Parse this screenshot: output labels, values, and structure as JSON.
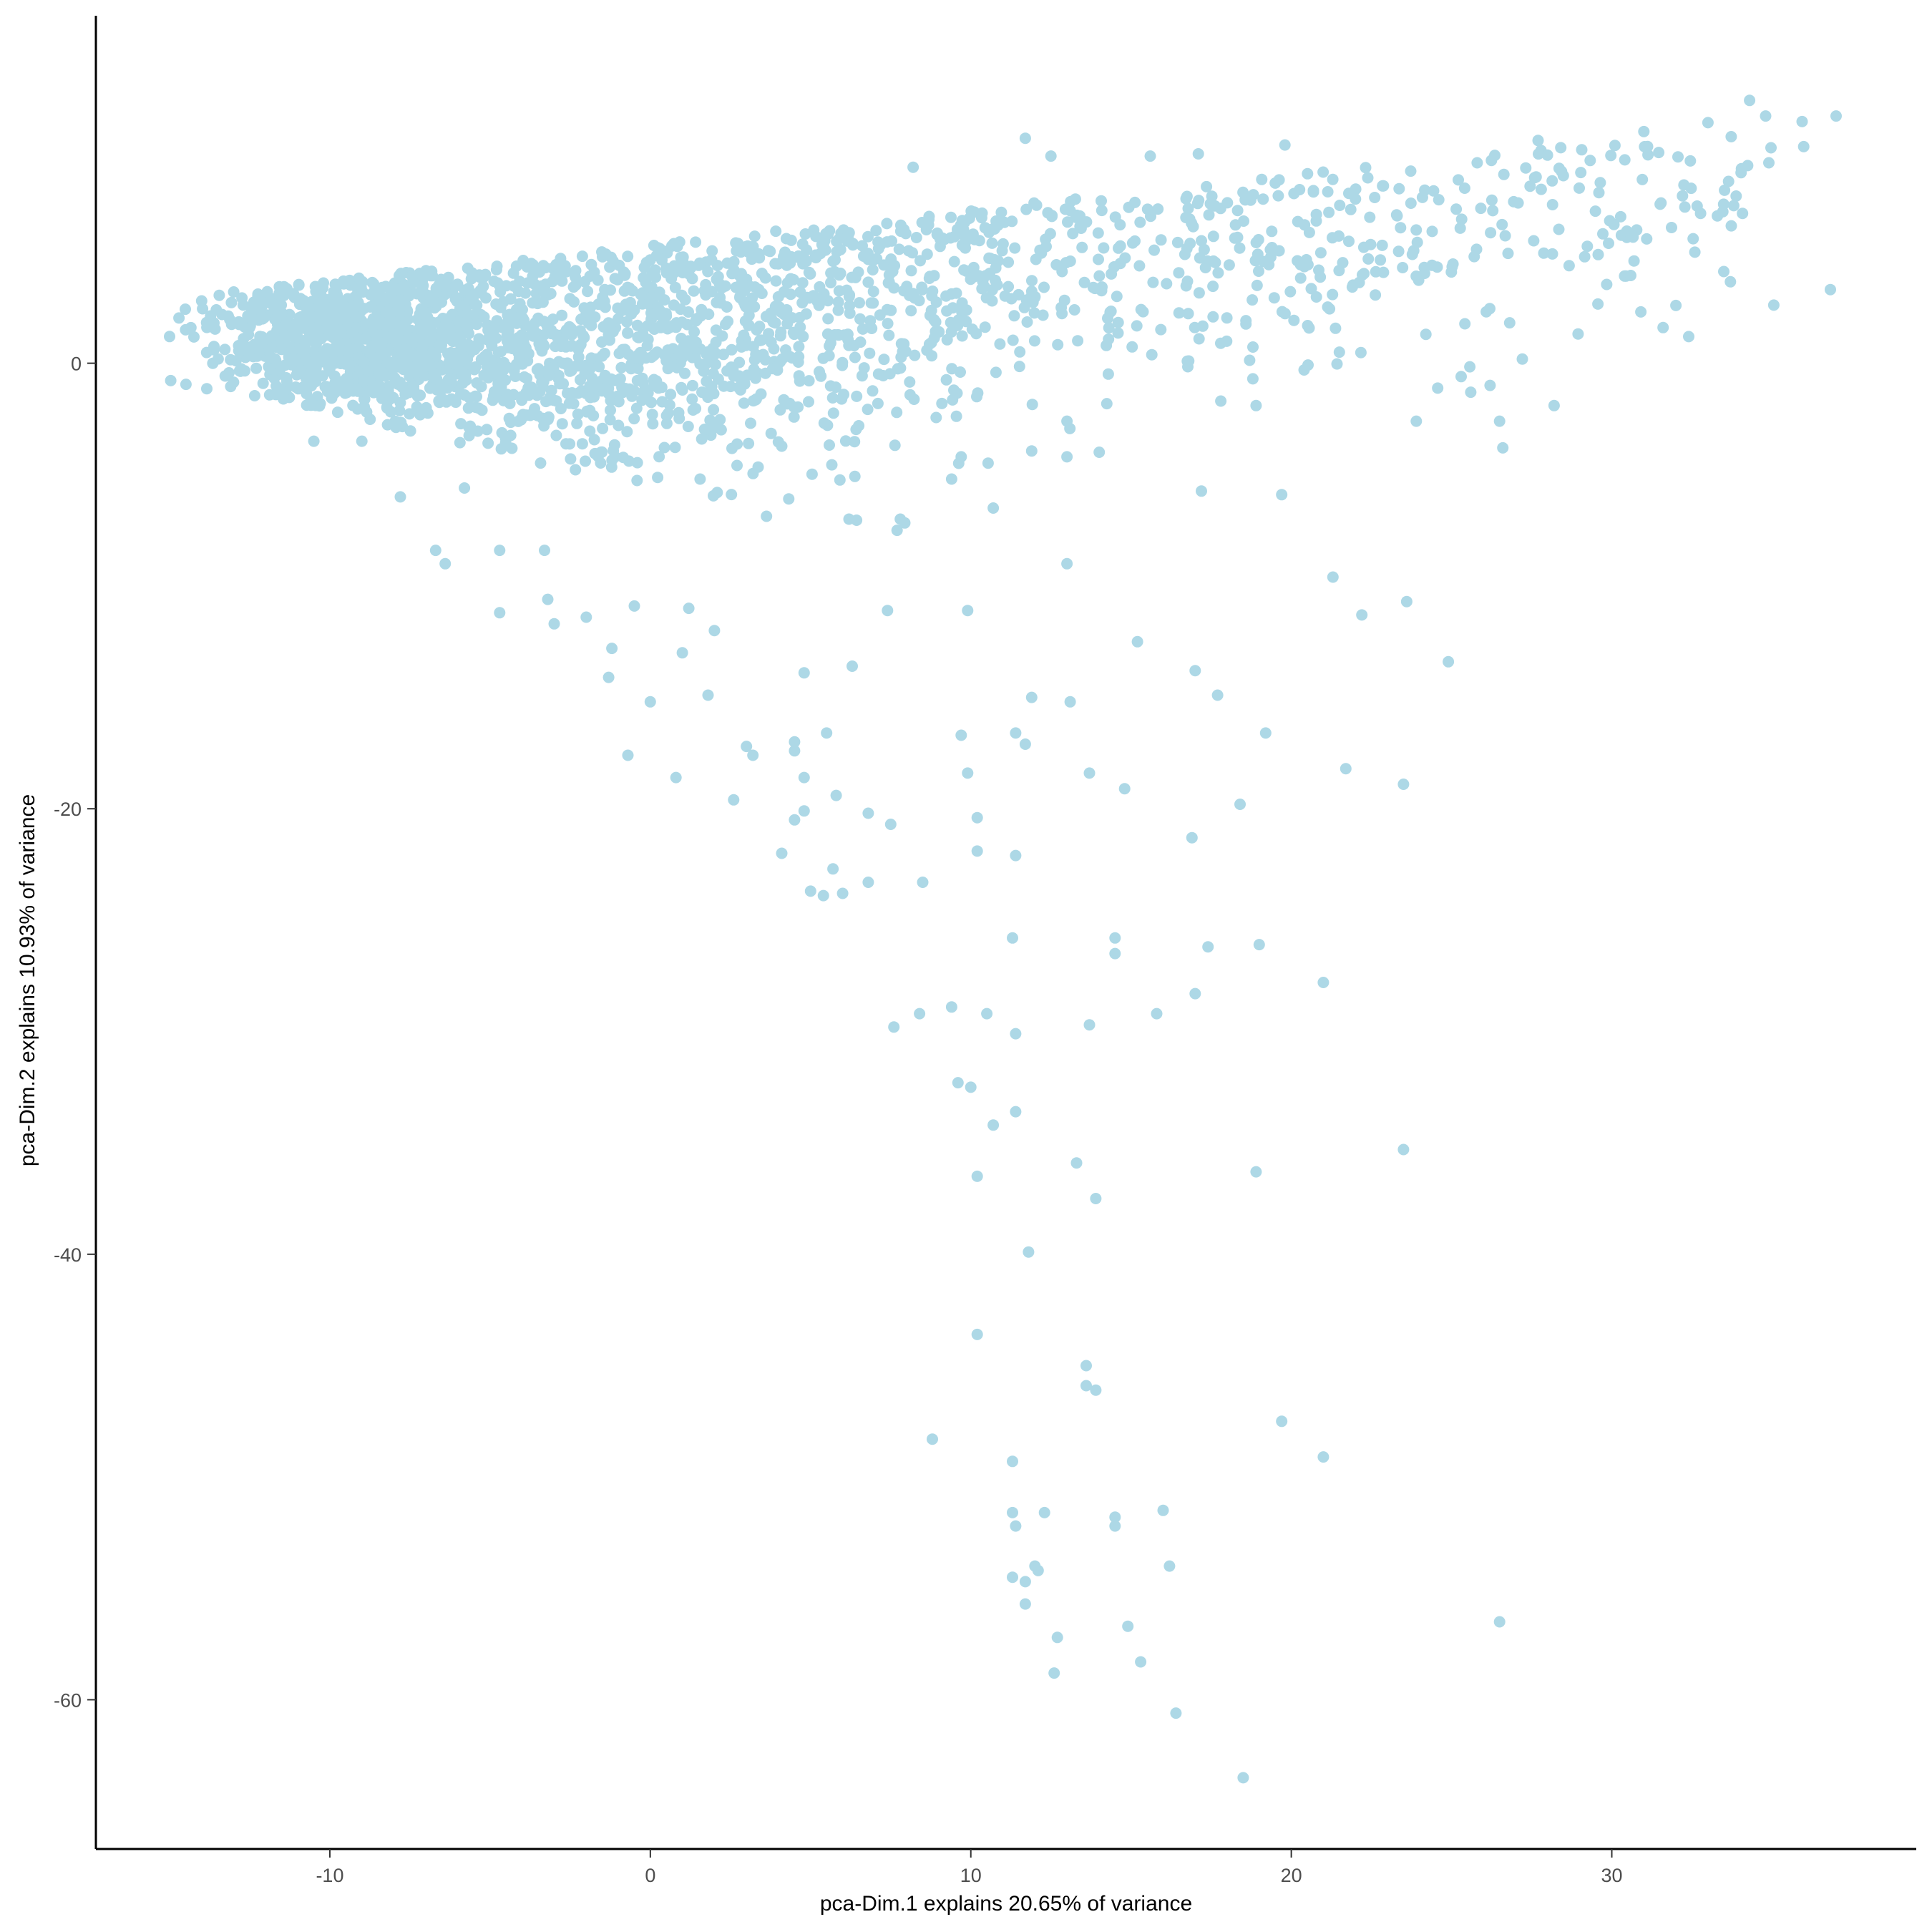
{
  "chart_data": {
    "type": "scatter",
    "title": "",
    "xlabel": "pca-Dim.1 explains 20.65% of variance",
    "ylabel": "pca-Dim.2 explains 10.93% of variance",
    "xlim": [
      -17.3,
      39.5
    ],
    "ylim": [
      -66.7,
      15.6
    ],
    "x_ticks": [
      -10,
      0,
      10,
      20,
      30
    ],
    "y_ticks": [
      0,
      -20,
      -40,
      -60
    ],
    "x_tick_labels": [
      "-10",
      "0",
      "10",
      "20",
      "30"
    ],
    "y_tick_labels": [
      "0",
      "-20",
      "-40",
      "-60"
    ],
    "grid": false,
    "legend": null,
    "point_color": "#ADD8E6",
    "point_radius_px": 8,
    "dense_cloud": {
      "description": "approximately 2500 points forming a wedge from (-15,1) widening to the upper right up to (37,11); densest near x=-10..-7, y=0..3",
      "seed": 7,
      "components": [
        {
          "n": 900,
          "cx": -9.0,
          "cy": 1.2,
          "sx": 2.2,
          "sy": 1.6
        },
        {
          "n": 500,
          "cx": -4.0,
          "cy": 0.5,
          "sx": 2.6,
          "sy": 2.4
        },
        {
          "n": 450,
          "cx": 2.0,
          "cy": 1.5,
          "sx": 3.0,
          "sy": 3.2
        },
        {
          "n": 300,
          "cx": 8.0,
          "cy": 3.5,
          "sx": 3.2,
          "sy": 3.0
        },
        {
          "n": 160,
          "cx": 15.0,
          "cy": 4.5,
          "sx": 3.2,
          "sy": 2.6
        },
        {
          "n": 110,
          "cx": 22.0,
          "cy": 5.5,
          "sx": 3.0,
          "sy": 2.6
        },
        {
          "n": 110,
          "cx": 29.5,
          "cy": 7.0,
          "sx": 3.0,
          "sy": 2.4
        }
      ]
    },
    "points": [
      {
        "x": 37.0,
        "y": 11.1
      },
      {
        "x": 34.3,
        "y": 11.8
      },
      {
        "x": 34.8,
        "y": 11.1
      },
      {
        "x": 33.0,
        "y": 10.8
      },
      {
        "x": 31.0,
        "y": 10.4
      },
      {
        "x": 11.7,
        "y": 10.1
      },
      {
        "x": 12.5,
        "y": 9.3
      },
      {
        "x": 15.6,
        "y": 9.3
      },
      {
        "x": 17.1,
        "y": 9.4
      },
      {
        "x": 19.8,
        "y": 9.8
      },
      {
        "x": 27.7,
        "y": 10.0
      },
      {
        "x": 8.2,
        "y": 8.8
      },
      {
        "x": 34.9,
        "y": 9.0
      },
      {
        "x": 25.8,
        "y": 9.0
      },
      {
        "x": 31.6,
        "y": 1.6
      },
      {
        "x": 24.2,
        "y": 1.3
      },
      {
        "x": 21.5,
        "y": 0.5
      },
      {
        "x": 16.8,
        "y": 0.1
      },
      {
        "x": 20.4,
        "y": -0.3
      },
      {
        "x": 25.3,
        "y": -0.6
      },
      {
        "x": 25.6,
        "y": -1.3
      },
      {
        "x": 17.8,
        "y": -1.7
      },
      {
        "x": 18.8,
        "y": -0.7
      },
      {
        "x": 18.9,
        "y": -1.9
      },
      {
        "x": 28.2,
        "y": -1.9
      },
      {
        "x": 23.9,
        "y": -2.6
      },
      {
        "x": 26.5,
        "y": -2.6
      },
      {
        "x": 13.0,
        "y": -2.6
      },
      {
        "x": 26.6,
        "y": -3.8
      },
      {
        "x": 13.0,
        "y": -4.2
      },
      {
        "x": 19.7,
        "y": -5.9
      },
      {
        "x": 9.4,
        "y": -5.2
      },
      {
        "x": 9.7,
        "y": -4.2
      },
      {
        "x": 10.7,
        "y": -6.5
      },
      {
        "x": 7.8,
        "y": -7.0
      },
      {
        "x": 7.7,
        "y": -7.5
      },
      {
        "x": 6.2,
        "y": -7.0
      },
      {
        "x": -6.7,
        "y": -8.4
      },
      {
        "x": -6.4,
        "y": -9.0
      },
      {
        "x": -4.7,
        "y": -8.4
      },
      {
        "x": -3.3,
        "y": -8.4
      },
      {
        "x": -4.7,
        "y": -11.2
      },
      {
        "x": -3.2,
        "y": -10.6
      },
      {
        "x": 13.0,
        "y": -9.0
      },
      {
        "x": 21.3,
        "y": -9.6
      },
      {
        "x": 23.6,
        "y": -10.7
      },
      {
        "x": 22.2,
        "y": -11.3
      },
      {
        "x": 7.4,
        "y": -11.1
      },
      {
        "x": 9.9,
        "y": -11.1
      },
      {
        "x": 15.2,
        "y": -12.5
      },
      {
        "x": 24.9,
        "y": -13.4
      },
      {
        "x": 17.0,
        "y": -13.8
      },
      {
        "x": 6.3,
        "y": -13.6
      },
      {
        "x": 4.8,
        "y": -13.9
      },
      {
        "x": -1.3,
        "y": -14.1
      },
      {
        "x": 0.0,
        "y": -15.2
      },
      {
        "x": 11.9,
        "y": -15.0
      },
      {
        "x": 13.1,
        "y": -15.2
      },
      {
        "x": 17.7,
        "y": -14.9
      },
      {
        "x": 19.2,
        "y": -16.6
      },
      {
        "x": 11.4,
        "y": -16.6
      },
      {
        "x": 9.7,
        "y": -16.7
      },
      {
        "x": 11.7,
        "y": -17.1
      },
      {
        "x": 5.5,
        "y": -16.6
      },
      {
        "x": 4.5,
        "y": -17.0
      },
      {
        "x": 4.5,
        "y": -17.4
      },
      {
        "x": 3.0,
        "y": -17.2
      },
      {
        "x": 3.2,
        "y": -17.6
      },
      {
        "x": -0.7,
        "y": -17.6
      },
      {
        "x": 21.7,
        "y": -18.2
      },
      {
        "x": 23.5,
        "y": -18.9
      },
      {
        "x": 13.7,
        "y": -18.4
      },
      {
        "x": 9.9,
        "y": -18.4
      },
      {
        "x": 0.8,
        "y": -18.6
      },
      {
        "x": 4.8,
        "y": -18.6
      },
      {
        "x": 14.8,
        "y": -19.1
      },
      {
        "x": 2.6,
        "y": -19.6
      },
      {
        "x": 18.4,
        "y": -19.8
      },
      {
        "x": 5.8,
        "y": -19.4
      },
      {
        "x": 4.8,
        "y": -20.1
      },
      {
        "x": 4.5,
        "y": -20.5
      },
      {
        "x": 6.8,
        "y": -20.2
      },
      {
        "x": 7.5,
        "y": -20.7
      },
      {
        "x": 10.2,
        "y": -20.4
      },
      {
        "x": 16.9,
        "y": -21.3
      },
      {
        "x": 4.1,
        "y": -22.0
      },
      {
        "x": 10.2,
        "y": -21.9
      },
      {
        "x": 11.4,
        "y": -22.1
      },
      {
        "x": 5.7,
        "y": -22.7
      },
      {
        "x": 6.8,
        "y": -23.3
      },
      {
        "x": 8.5,
        "y": -23.3
      },
      {
        "x": 5.0,
        "y": -23.7
      },
      {
        "x": 5.4,
        "y": -23.9
      },
      {
        "x": 6.0,
        "y": -23.8
      },
      {
        "x": 11.3,
        "y": -25.8
      },
      {
        "x": 14.5,
        "y": -25.8
      },
      {
        "x": 14.5,
        "y": -26.5
      },
      {
        "x": 17.4,
        "y": -26.2
      },
      {
        "x": 19.0,
        "y": -26.1
      },
      {
        "x": 21.0,
        "y": -27.8
      },
      {
        "x": 17.0,
        "y": -28.3
      },
      {
        "x": 9.4,
        "y": -28.9
      },
      {
        "x": 8.4,
        "y": -29.2
      },
      {
        "x": 7.6,
        "y": -29.8
      },
      {
        "x": 10.5,
        "y": -29.2
      },
      {
        "x": 11.4,
        "y": -30.1
      },
      {
        "x": 13.7,
        "y": -29.7
      },
      {
        "x": 15.8,
        "y": -29.2
      },
      {
        "x": 9.6,
        "y": -32.3
      },
      {
        "x": 10.0,
        "y": -32.5
      },
      {
        "x": 11.4,
        "y": -33.6
      },
      {
        "x": 10.7,
        "y": -34.2
      },
      {
        "x": 13.3,
        "y": -35.9
      },
      {
        "x": 23.5,
        "y": -35.3
      },
      {
        "x": 18.9,
        "y": -36.3
      },
      {
        "x": 10.2,
        "y": -36.5
      },
      {
        "x": 13.9,
        "y": -37.5
      },
      {
        "x": 11.8,
        "y": -39.9
      },
      {
        "x": 10.2,
        "y": -43.6
      },
      {
        "x": 13.6,
        "y": -45.0
      },
      {
        "x": 13.6,
        "y": -45.9
      },
      {
        "x": 13.9,
        "y": -46.1
      },
      {
        "x": 8.8,
        "y": -48.3
      },
      {
        "x": 19.7,
        "y": -47.5
      },
      {
        "x": 11.3,
        "y": -49.3
      },
      {
        "x": 21.0,
        "y": -49.1
      },
      {
        "x": 11.3,
        "y": -51.6
      },
      {
        "x": 11.4,
        "y": -52.2
      },
      {
        "x": 12.3,
        "y": -51.6
      },
      {
        "x": 14.5,
        "y": -51.8
      },
      {
        "x": 14.5,
        "y": -52.2
      },
      {
        "x": 16.0,
        "y": -51.5
      },
      {
        "x": 12.0,
        "y": -54.0
      },
      {
        "x": 12.1,
        "y": -54.2
      },
      {
        "x": 11.3,
        "y": -54.5
      },
      {
        "x": 11.7,
        "y": -54.7
      },
      {
        "x": 16.2,
        "y": -54.0
      },
      {
        "x": 11.7,
        "y": -55.7
      },
      {
        "x": 26.5,
        "y": -56.5
      },
      {
        "x": 14.9,
        "y": -56.7
      },
      {
        "x": 12.7,
        "y": -57.2
      },
      {
        "x": 15.3,
        "y": -58.3
      },
      {
        "x": 12.6,
        "y": -58.8
      },
      {
        "x": 16.4,
        "y": -60.6
      },
      {
        "x": 18.5,
        "y": -63.5
      },
      {
        "x": -15.0,
        "y": 1.2
      },
      {
        "x": -14.5,
        "y": 1.5
      },
      {
        "x": -14.0,
        "y": 2.8
      },
      {
        "x": -13.0,
        "y": 3.2
      },
      {
        "x": -9.0,
        "y": -3.5
      },
      {
        "x": -10.5,
        "y": -3.5
      },
      {
        "x": -7.8,
        "y": -6.0
      },
      {
        "x": -5.8,
        "y": -5.6
      },
      {
        "x": -3.0,
        "y": -11.7
      },
      {
        "x": -2.0,
        "y": -11.4
      },
      {
        "x": -1.2,
        "y": -12.8
      },
      {
        "x": -0.5,
        "y": -10.9
      },
      {
        "x": 1.2,
        "y": -11.0
      },
      {
        "x": 2.0,
        "y": -12.0
      },
      {
        "x": 1.0,
        "y": -13.0
      },
      {
        "x": 1.8,
        "y": -14.9
      }
    ]
  }
}
